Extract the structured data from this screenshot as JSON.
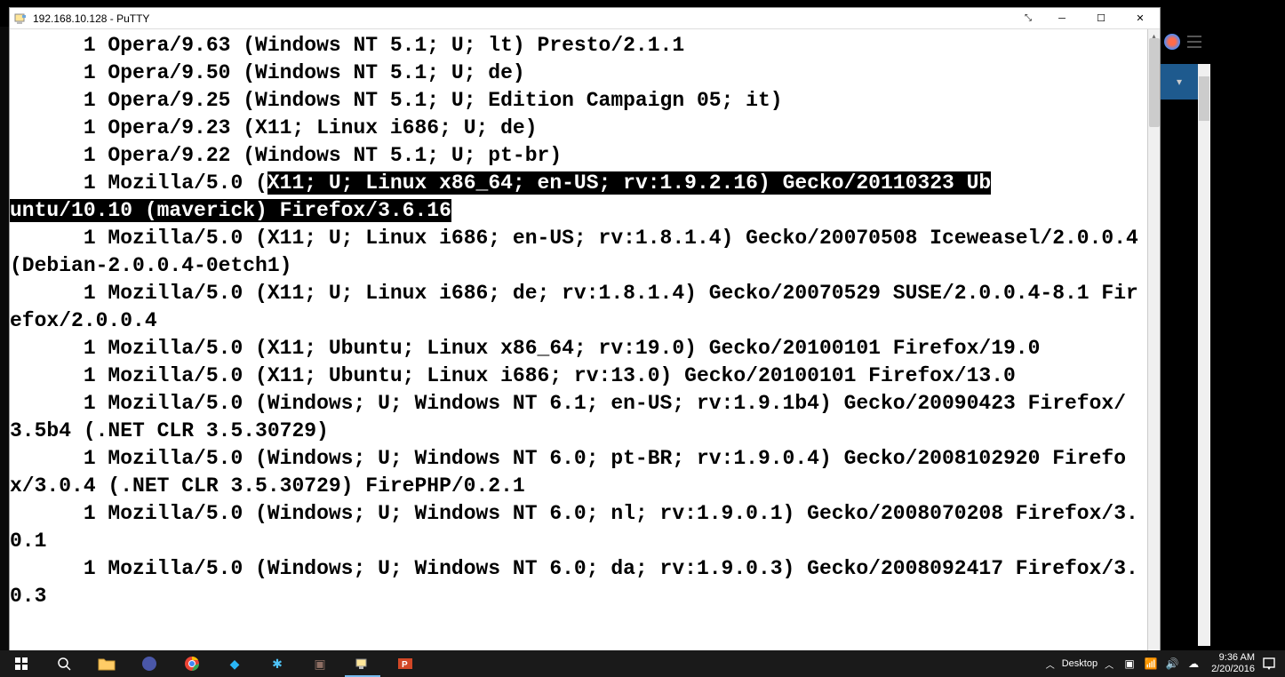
{
  "window": {
    "title": "192.168.10.128 - PuTTY"
  },
  "terminal": {
    "lines": [
      {
        "pre": "      1 Opera/9.63 (Windows NT 5.1; U; lt) Presto/2.1.1",
        "hl": "",
        "post": ""
      },
      {
        "pre": "      1 Opera/9.50 (Windows NT 5.1; U; de)",
        "hl": "",
        "post": ""
      },
      {
        "pre": "      1 Opera/9.25 (Windows NT 5.1; U; Edition Campaign 05; it)",
        "hl": "",
        "post": ""
      },
      {
        "pre": "      1 Opera/9.23 (X11; Linux i686; U; de)",
        "hl": "",
        "post": ""
      },
      {
        "pre": "      1 Opera/9.22 (Windows NT 5.1; U; pt-br)",
        "hl": "",
        "post": ""
      },
      {
        "pre": "      1 Mozilla/5.0 (",
        "hl": "X11; U; Linux x86_64; en-US; rv:1.9.2.16) Gecko/20110323 Ub",
        "post": ""
      },
      {
        "pre": "",
        "hl": "untu/10.10 (maverick) Firefox/3.6.16",
        "post": ""
      },
      {
        "pre": "      1 Mozilla/5.0 (X11; U; Linux i686; en-US; rv:1.8.1.4) Gecko/20070508 Iceweasel/2.0.0.4 (Debian-2.0.0.4-0etch1)",
        "hl": "",
        "post": ""
      },
      {
        "pre": "      1 Mozilla/5.0 (X11; U; Linux i686; de; rv:1.8.1.4) Gecko/20070529 SUSE/2.0.0.4-8.1 Firefox/2.0.0.4",
        "hl": "",
        "post": ""
      },
      {
        "pre": "      1 Mozilla/5.0 (X11; Ubuntu; Linux x86_64; rv:19.0) Gecko/20100101 Firefox/19.0",
        "hl": "",
        "post": ""
      },
      {
        "pre": "      1 Mozilla/5.0 (X11; Ubuntu; Linux i686; rv:13.0) Gecko/20100101 Firefox/13.0",
        "hl": "",
        "post": ""
      },
      {
        "pre": "      1 Mozilla/5.0 (Windows; U; Windows NT 6.1; en-US; rv:1.9.1b4) Gecko/20090423 Firefox/3.5b4 (.NET CLR 3.5.30729)",
        "hl": "",
        "post": ""
      },
      {
        "pre": "      1 Mozilla/5.0 (Windows; U; Windows NT 6.0; pt-BR; rv:1.9.0.4) Gecko/2008102920 Firefox/3.0.4 (.NET CLR 3.5.30729) FirePHP/0.2.1",
        "hl": "",
        "post": ""
      },
      {
        "pre": "      1 Mozilla/5.0 (Windows; U; Windows NT 6.0; nl; rv:1.9.0.1) Gecko/2008070208 Firefox/3.0.1",
        "hl": "",
        "post": ""
      },
      {
        "pre": "      1 Mozilla/5.0 (Windows; U; Windows NT 6.0; da; rv:1.9.0.3) Gecko/2008092417 Firefox/3.0.3",
        "hl": "",
        "post": ""
      }
    ],
    "font_family": "Courier New",
    "font_size": 23,
    "bg_color": "#ffffff",
    "fg_color": "#000000",
    "highlight_bg": "#000000",
    "highlight_fg": "#ffffff"
  },
  "taskbar": {
    "desktop_label": "Desktop",
    "clock_time": "9:36 AM",
    "clock_date": "2/20/2016",
    "bg_color": "#1a1a1a",
    "items": [
      {
        "name": "start",
        "icon": "⊞",
        "color": "#ffffff"
      },
      {
        "name": "search",
        "icon": "◌",
        "color": "#ffffff"
      },
      {
        "name": "file-explorer",
        "icon": "📁",
        "color": "#ffcc66"
      },
      {
        "name": "firefox",
        "icon": "●",
        "color": "#ff7139"
      },
      {
        "name": "chrome",
        "icon": "●",
        "color": "#4285f4"
      },
      {
        "name": "app1",
        "icon": "◆",
        "color": "#29b6f6"
      },
      {
        "name": "app2",
        "icon": "✱",
        "color": "#4fc3f7"
      },
      {
        "name": "app3",
        "icon": "▣",
        "color": "#8d6e63"
      },
      {
        "name": "putty",
        "icon": "▭",
        "color": "#cccccc"
      },
      {
        "name": "powerpoint",
        "icon": "P",
        "color": "#d24726"
      }
    ]
  },
  "right_panel": {
    "blue_color": "#1e5a8e"
  }
}
